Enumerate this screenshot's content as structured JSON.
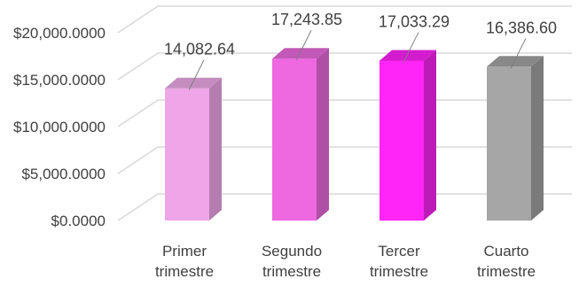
{
  "chart_data": {
    "type": "bar",
    "style": "3d-column",
    "categories": [
      [
        "Primer",
        "trimestre"
      ],
      [
        "Segundo",
        "trimestre"
      ],
      [
        "Tercer",
        "trimestre"
      ],
      [
        "Cuarto",
        "trimestre"
      ]
    ],
    "values": [
      14082.64,
      17243.85,
      17033.29,
      16386.6
    ],
    "data_labels": [
      "14,082.64",
      "17,243.85",
      "17,033.29",
      "16,386.60"
    ],
    "bar_colors": [
      {
        "front": "#efa6e8",
        "side": "#b57cb0",
        "top": "#c58dbf"
      },
      {
        "front": "#ee68e0",
        "side": "#b04fa6",
        "top": "#c258b7"
      },
      {
        "front": "#ff24f8",
        "side": "#bd1bb8",
        "top": "#d21ccd"
      },
      {
        "front": "#a6a6a6",
        "side": "#7a7a7a",
        "top": "#888888"
      }
    ],
    "y_ticks": [
      0,
      5000,
      10000,
      15000,
      20000
    ],
    "y_tick_labels": [
      "$0.0000",
      "$5,000.0000",
      "$10,000.0000",
      "$15,000.0000",
      "$20,000.0000"
    ],
    "ylim": [
      0,
      20000
    ],
    "title": "",
    "xlabel": "",
    "ylabel": "",
    "grid": true,
    "legend": "none"
  }
}
